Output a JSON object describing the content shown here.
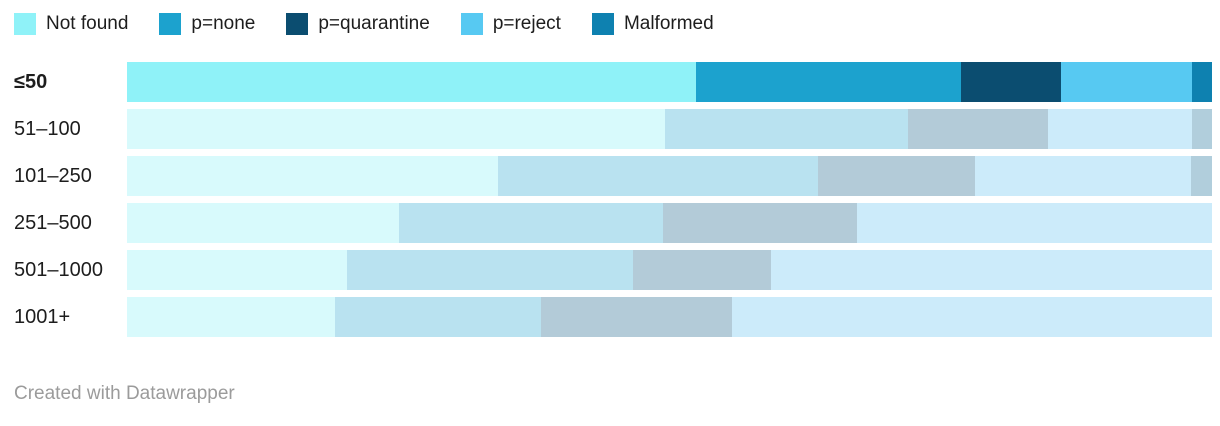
{
  "legend": {
    "items": [
      {
        "id": "not-found",
        "label": "Not found"
      },
      {
        "id": "p-none",
        "label": "p=none"
      },
      {
        "id": "p-quarantine",
        "label": "p=quarantine"
      },
      {
        "id": "p-reject",
        "label": "p=reject"
      },
      {
        "id": "malformed",
        "label": "Malformed"
      }
    ]
  },
  "colors": {
    "full": {
      "Not found": "#8ff2f8",
      "p=none": "#1ca2ce",
      "p=quarantine": "#0b4d70",
      "p=reject": "#57c9f2",
      "Malformed": "#0e81b0"
    },
    "faded": {
      "Not found": "#d8fafc",
      "p=none": "#b9e2f0",
      "p=quarantine": "#b3cbd8",
      "p=reject": "#ccebfa",
      "Malformed": "#b1cedc"
    }
  },
  "chart_data": {
    "type": "bar",
    "variant": "stacked-horizontal-100percent",
    "legend_position": "top",
    "value_unit": "percent of row",
    "xlim": [
      0,
      100
    ],
    "grid": false,
    "highlighted_category": "≤50",
    "categories": [
      "≤50",
      "51–100",
      "101–250",
      "251–500",
      "501–1000",
      "1001+"
    ],
    "series": [
      {
        "name": "Not found",
        "values": [
          52.4,
          49.6,
          34.2,
          25.1,
          20.3,
          19.2
        ]
      },
      {
        "name": "p=none",
        "values": [
          24.5,
          22.4,
          29.5,
          24.3,
          26.3,
          19.0
        ]
      },
      {
        "name": "p=quarantine",
        "values": [
          9.2,
          12.9,
          14.5,
          17.9,
          12.8,
          17.6
        ]
      },
      {
        "name": "p=reject",
        "values": [
          12.1,
          13.3,
          19.9,
          32.7,
          40.6,
          44.2
        ]
      },
      {
        "name": "Malformed",
        "values": [
          1.8,
          1.8,
          1.9,
          0,
          0,
          0
        ]
      }
    ]
  },
  "footer": {
    "text": "Created with Datawrapper"
  }
}
